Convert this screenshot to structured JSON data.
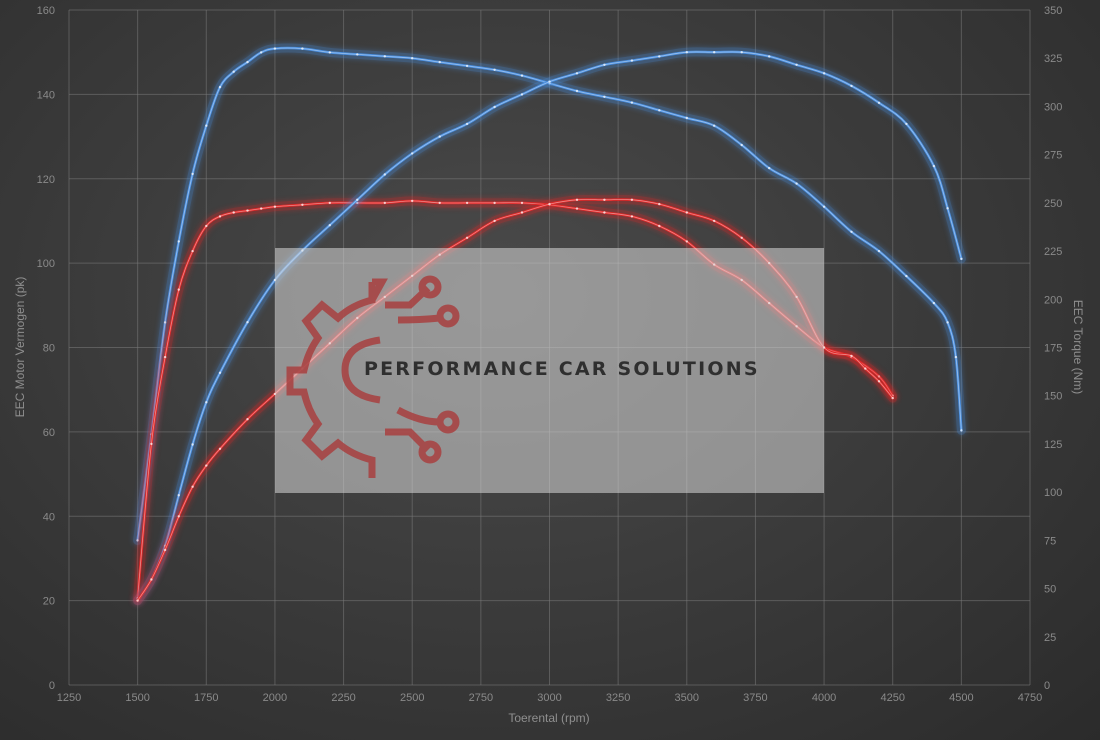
{
  "watermark": {
    "text": "PERFORMANCE CAR SOLUTIONS"
  },
  "chart_data": {
    "type": "line",
    "title": "",
    "xlabel": "Toerental (rpm)",
    "ylabel_left": "EEC Motor Vermogen (pk)",
    "ylabel_right": "EEC Torque (Nm)",
    "xlim": [
      1250,
      4750
    ],
    "x_ticks": [
      1250,
      1500,
      1750,
      2000,
      2250,
      2500,
      2750,
      3000,
      3250,
      3500,
      3750,
      4000,
      4250,
      4500,
      4750
    ],
    "ylim_left": [
      0,
      160
    ],
    "y_left_ticks": [
      0,
      20,
      40,
      60,
      80,
      100,
      120,
      140,
      160
    ],
    "ylim_right": [
      0,
      350
    ],
    "y_right_ticks": [
      0,
      25,
      50,
      75,
      100,
      125,
      150,
      175,
      200,
      225,
      250,
      275,
      300,
      325,
      350
    ],
    "grid": true,
    "colors": {
      "tuned": "#4a8fe0",
      "stock": "#e02828",
      "background": "#3c3c3c"
    },
    "series": [
      {
        "axis": "right",
        "color": "#4a8fe0",
        "x": [
          1500,
          1550,
          1600,
          1650,
          1700,
          1750,
          1800,
          1850,
          1900,
          1950,
          2000,
          2100,
          2200,
          2300,
          2400,
          2500,
          2600,
          2700,
          2800,
          2900,
          3000,
          3100,
          3200,
          3300,
          3400,
          3500,
          3600,
          3700,
          3800,
          3900,
          4000,
          4100,
          4200,
          4300,
          4400,
          4450,
          4480,
          4500
        ],
        "y": [
          75,
          130,
          188,
          230,
          265,
          290,
          310,
          318,
          323,
          328,
          330,
          330,
          328,
          327,
          326,
          325,
          323,
          321,
          319,
          316,
          312,
          308,
          305,
          302,
          298,
          294,
          290,
          280,
          268,
          260,
          248,
          235,
          225,
          212,
          198,
          188,
          170,
          132
        ]
      },
      {
        "axis": "right",
        "color": "#e02828",
        "x": [
          1500,
          1550,
          1600,
          1650,
          1700,
          1750,
          1800,
          1850,
          1900,
          1950,
          2000,
          2100,
          2200,
          2300,
          2400,
          2500,
          2600,
          2700,
          2800,
          2900,
          3000,
          3100,
          3200,
          3300,
          3400,
          3500,
          3600,
          3700,
          3800,
          3900,
          4000,
          4100,
          4200,
          4250
        ],
        "y": [
          45,
          125,
          170,
          205,
          225,
          238,
          243,
          245,
          246,
          247,
          248,
          249,
          250,
          250,
          250,
          251,
          250,
          250,
          250,
          250,
          249,
          247,
          245,
          243,
          238,
          230,
          218,
          210,
          198,
          186,
          175,
          170,
          160,
          150
        ]
      },
      {
        "axis": "left",
        "color": "#4a8fe0",
        "x": [
          1500,
          1550,
          1600,
          1650,
          1700,
          1750,
          1800,
          1900,
          2000,
          2100,
          2200,
          2300,
          2400,
          2500,
          2600,
          2700,
          2800,
          2900,
          3000,
          3100,
          3200,
          3300,
          3400,
          3500,
          3600,
          3700,
          3800,
          3900,
          4000,
          4100,
          4200,
          4300,
          4400,
          4450,
          4500
        ],
        "y": [
          20,
          25,
          33,
          45,
          57,
          67,
          74,
          86,
          96,
          103,
          109,
          115,
          121,
          126,
          130,
          133,
          137,
          140,
          143,
          145,
          147,
          148,
          149,
          150,
          150,
          150,
          149,
          147,
          145,
          142,
          138,
          133,
          123,
          113,
          101
        ]
      },
      {
        "axis": "left",
        "color": "#e02828",
        "x": [
          1500,
          1550,
          1600,
          1650,
          1700,
          1750,
          1800,
          1900,
          2000,
          2100,
          2200,
          2300,
          2400,
          2500,
          2600,
          2700,
          2800,
          2900,
          3000,
          3100,
          3200,
          3300,
          3400,
          3500,
          3600,
          3700,
          3800,
          3900,
          4000,
          4100,
          4150,
          4200,
          4250
        ],
        "y": [
          20,
          25,
          32,
          40,
          47,
          52,
          56,
          63,
          69,
          75,
          81,
          87,
          92,
          97,
          102,
          106,
          110,
          112,
          114,
          115,
          115,
          115,
          114,
          112,
          110,
          106,
          100,
          92,
          80,
          78,
          75,
          72,
          68
        ]
      }
    ]
  }
}
